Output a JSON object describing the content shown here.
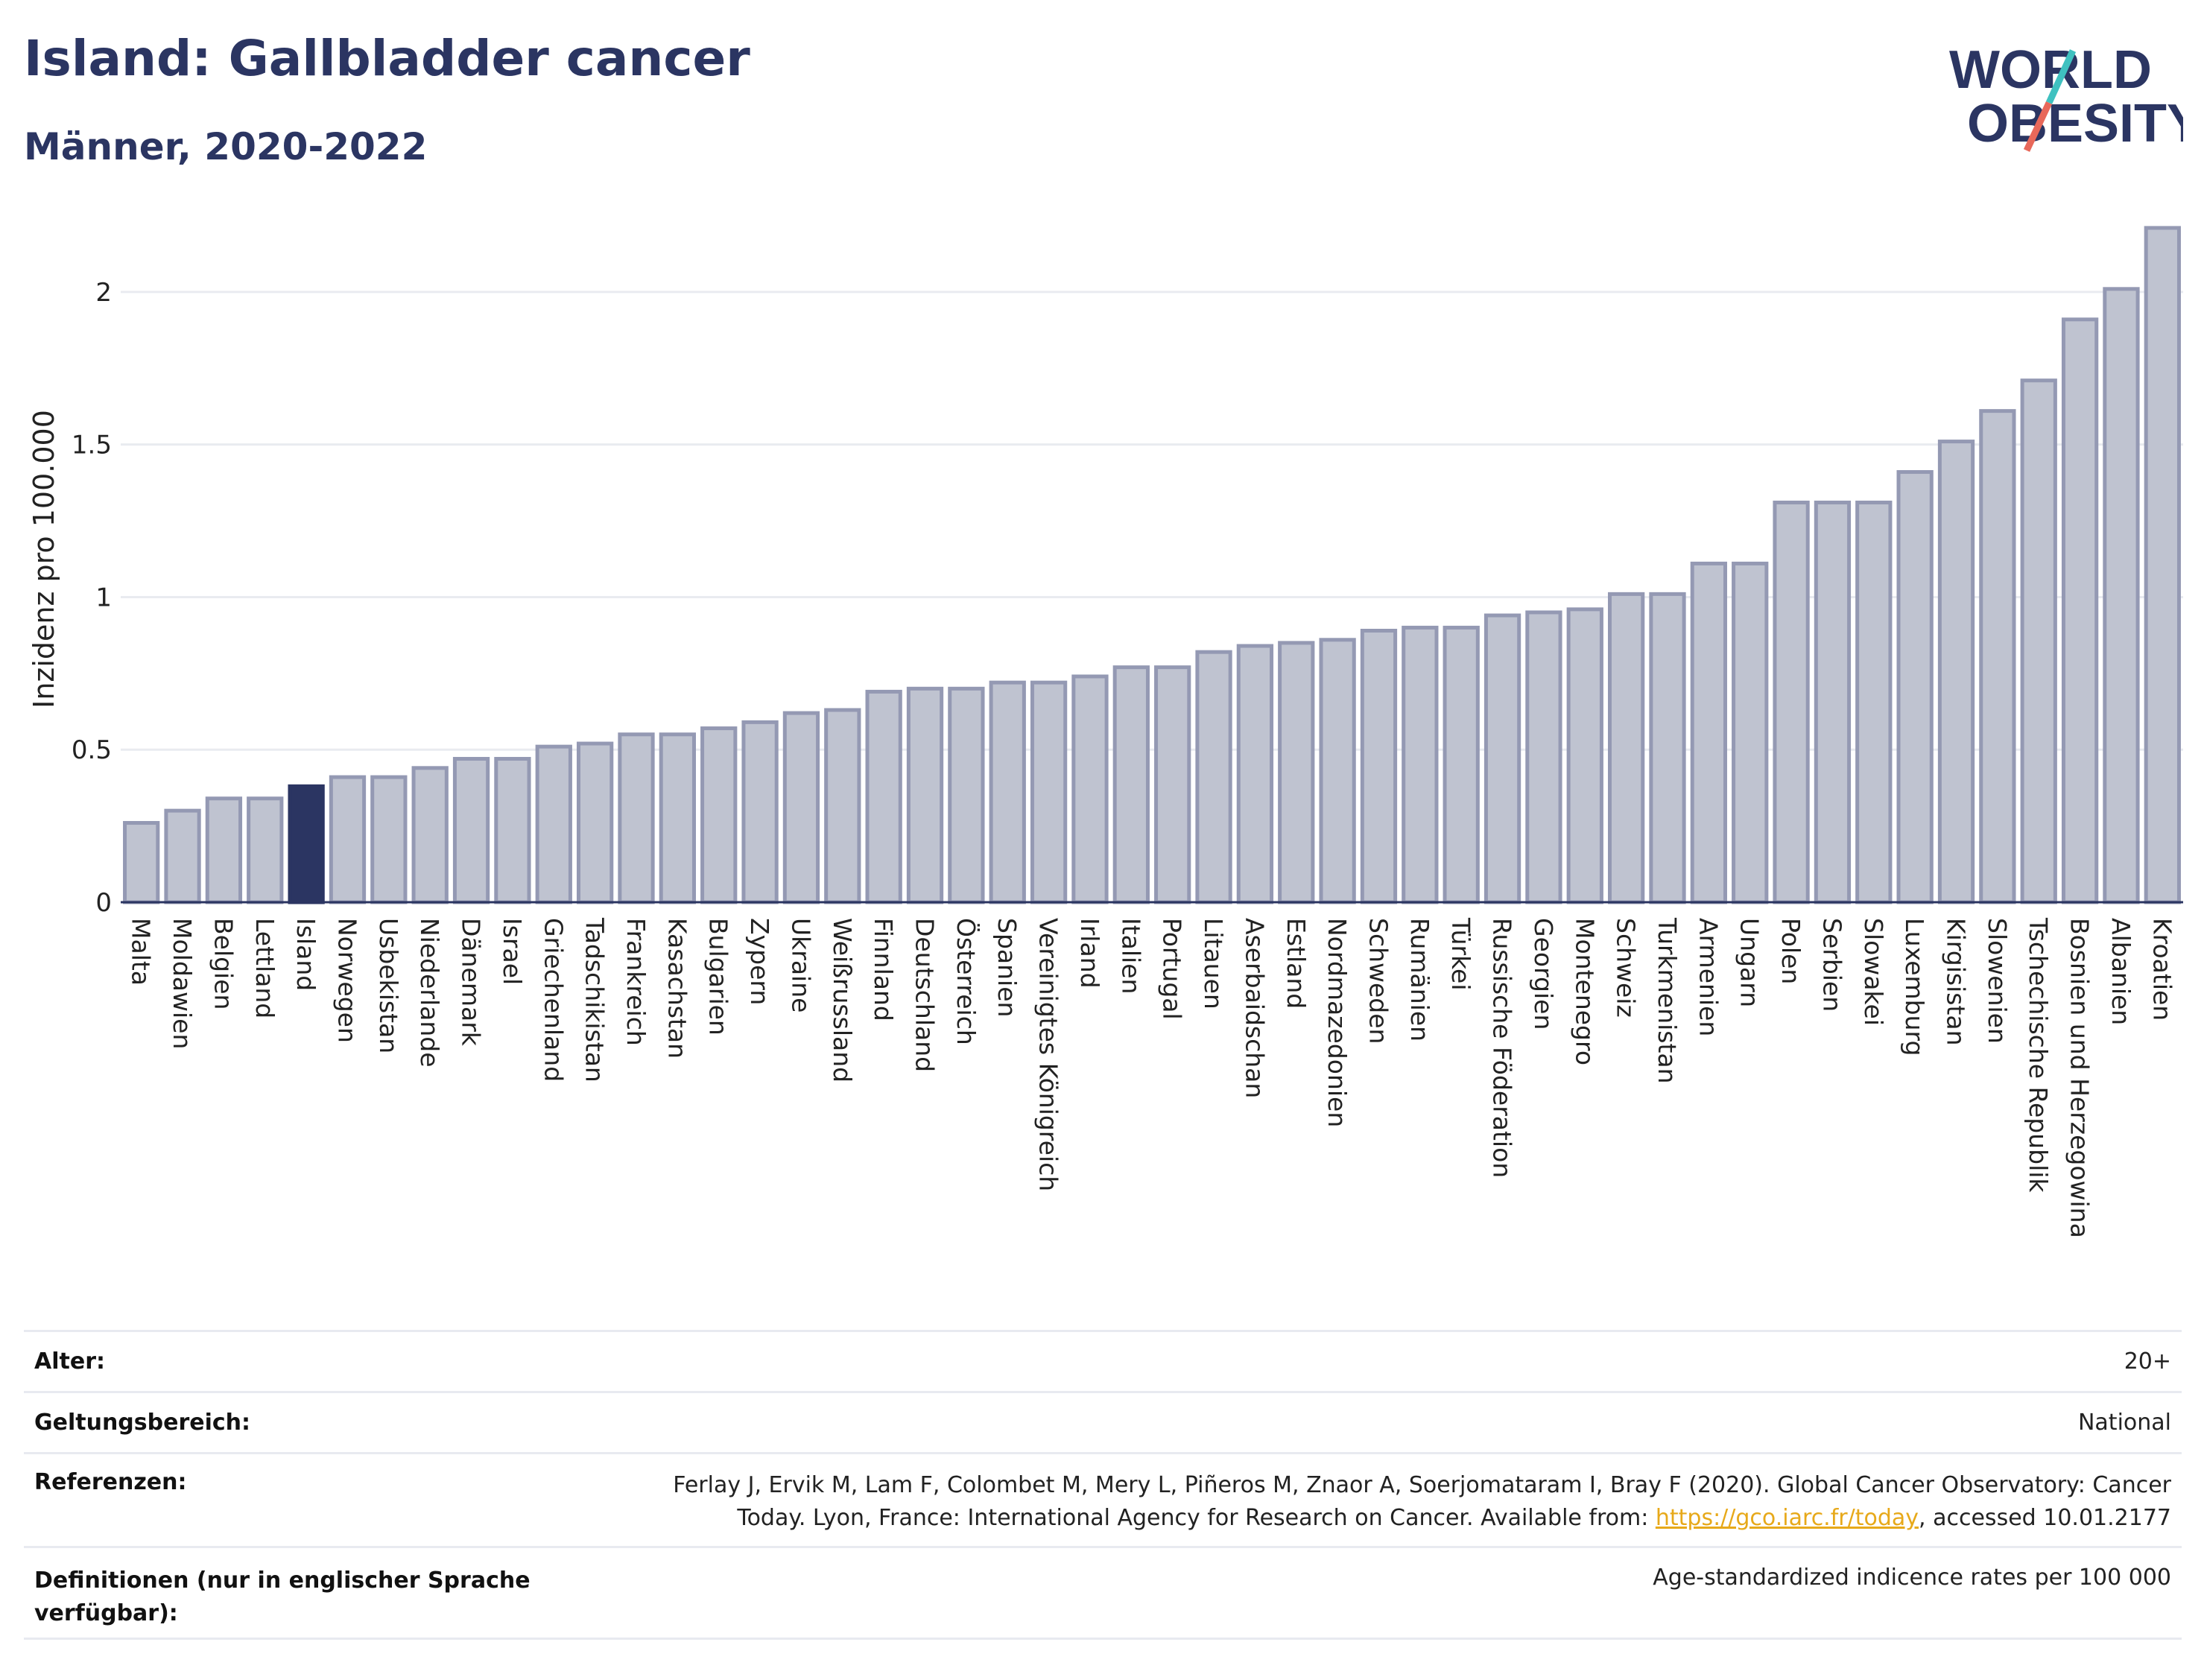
{
  "header": {
    "title": "Island: Gallbladder cancer",
    "subtitle": "Männer, 2020-2022"
  },
  "logo": {
    "line1": "WORLD",
    "line2": "OBESITY"
  },
  "colors": {
    "highlight": "#2b3562",
    "bar_fill": "#bfc3d0",
    "bar_stroke": "#9499b3",
    "text": "#2b3562"
  },
  "chart_data": {
    "type": "bar",
    "title": "Island: Gallbladder cancer",
    "subtitle": "Männer, 2020-2022",
    "xlabel": "",
    "ylabel": "Inzidenz pro 100.000",
    "ylim": [
      0,
      2.2
    ],
    "yticks": [
      0,
      0.5,
      1,
      1.5,
      2
    ],
    "ytick_labels": [
      "0",
      "0.5",
      "1",
      "1.5",
      "2"
    ],
    "grid": true,
    "highlight": "Island",
    "categories": [
      "Malta",
      "Moldawien",
      "Belgien",
      "Lettland",
      "Island",
      "Norwegen",
      "Usbekistan",
      "Niederlande",
      "Dänemark",
      "Israel",
      "Griechenland",
      "Tadschikistan",
      "Frankreich",
      "Kasachstan",
      "Bulgarien",
      "Zypern",
      "Ukraine",
      "Weißrussland",
      "Finnland",
      "Deutschland",
      "Österreich",
      "Spanien",
      "Vereinigtes Königreich",
      "Irland",
      "Italien",
      "Portugal",
      "Litauen",
      "Aserbaidschan",
      "Estland",
      "Nordmazedonien",
      "Schweden",
      "Rumänien",
      "Türkei",
      "Russische Föderation",
      "Georgien",
      "Montenegro",
      "Schweiz",
      "Turkmenistan",
      "Armenien",
      "Ungarn",
      "Polen",
      "Serbien",
      "Slowakei",
      "Luxemburg",
      "Kirgisistan",
      "Slowenien",
      "Tschechische Republik",
      "Bosnien und Herzegowina",
      "Albanien",
      "Kroatien"
    ],
    "values": [
      0.26,
      0.3,
      0.34,
      0.34,
      0.38,
      0.41,
      0.41,
      0.44,
      0.47,
      0.47,
      0.51,
      0.52,
      0.55,
      0.55,
      0.57,
      0.59,
      0.62,
      0.63,
      0.69,
      0.7,
      0.7,
      0.72,
      0.72,
      0.74,
      0.77,
      0.77,
      0.82,
      0.84,
      0.85,
      0.86,
      0.89,
      0.9,
      0.9,
      0.94,
      0.95,
      0.96,
      1.01,
      1.01,
      1.11,
      1.11,
      1.31,
      1.31,
      1.31,
      1.41,
      1.51,
      1.61,
      1.71,
      1.91,
      2.01,
      2.21
    ]
  },
  "footer": {
    "rows": [
      {
        "label": "Alter:",
        "value": "20+"
      },
      {
        "label": "Geltungsbereich:",
        "value": "National"
      },
      {
        "label": "Referenzen:",
        "value_pre": "Ferlay J, Ervik M, Lam F, Colombet M, Mery L, Piñeros M, Znaor A, Soerjomataram I, Bray F (2020). Global Cancer Observatory: Cancer Today. Lyon, France: International Agency for Research on Cancer. Available from: ",
        "link": "https://gco.iarc.fr/today",
        "value_post": ", accessed 10.01.2177"
      },
      {
        "label": "Definitionen (nur in englischer Sprache verfügbar):",
        "value": "Age-standardized indicence rates per 100 000"
      }
    ]
  }
}
